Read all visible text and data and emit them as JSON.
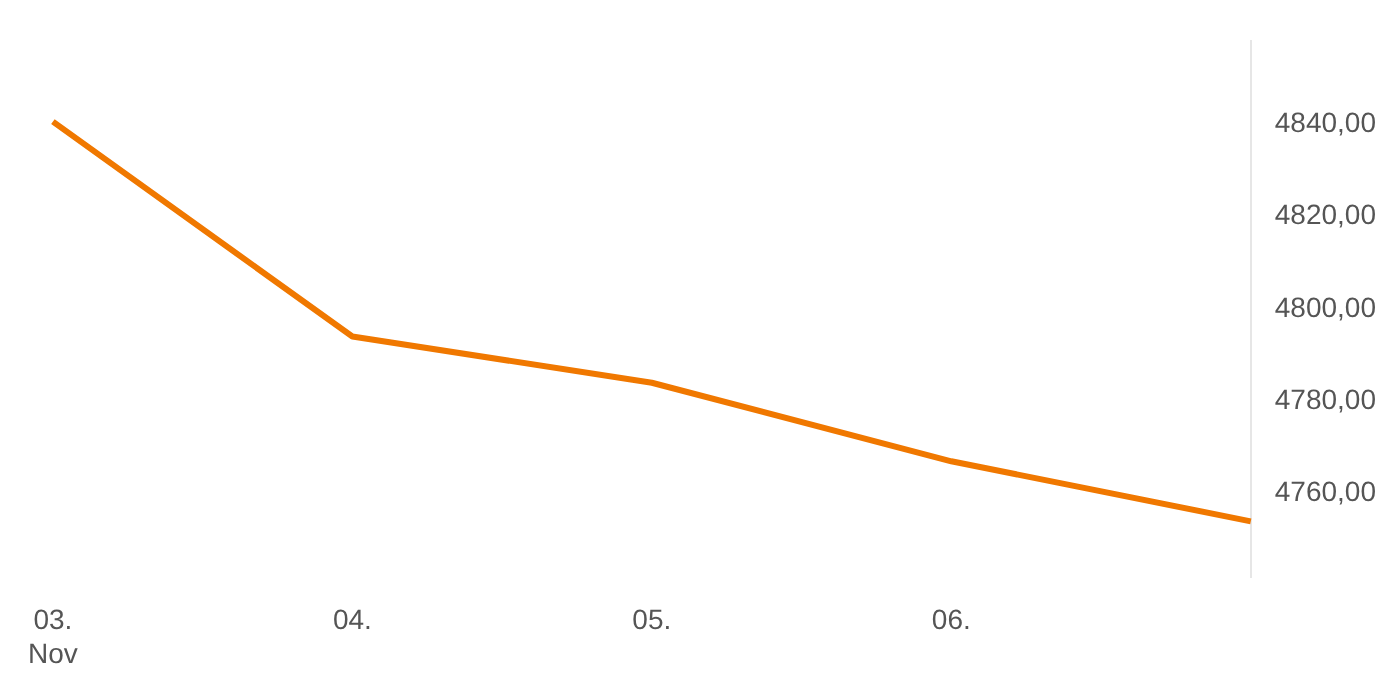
{
  "chart_data": {
    "type": "line",
    "categories": [
      "03. Nov",
      "04.",
      "05.",
      "06.",
      null
    ],
    "series": [
      {
        "color": "#f07800",
        "values": [
          4840.5,
          4794,
          4784,
          4767,
          4754
        ]
      }
    ],
    "ylim": [
      4742,
      4858
    ],
    "yticks": [
      {
        "value": 4760,
        "label": "4760,00"
      },
      {
        "value": 4780,
        "label": "4780,00"
      },
      {
        "value": 4800,
        "label": "4800,00"
      },
      {
        "value": 4820,
        "label": "4820,00"
      },
      {
        "value": 4840,
        "label": "4840,00"
      }
    ],
    "grid": false,
    "legend": false,
    "marker": "none",
    "line_style": "solid"
  }
}
